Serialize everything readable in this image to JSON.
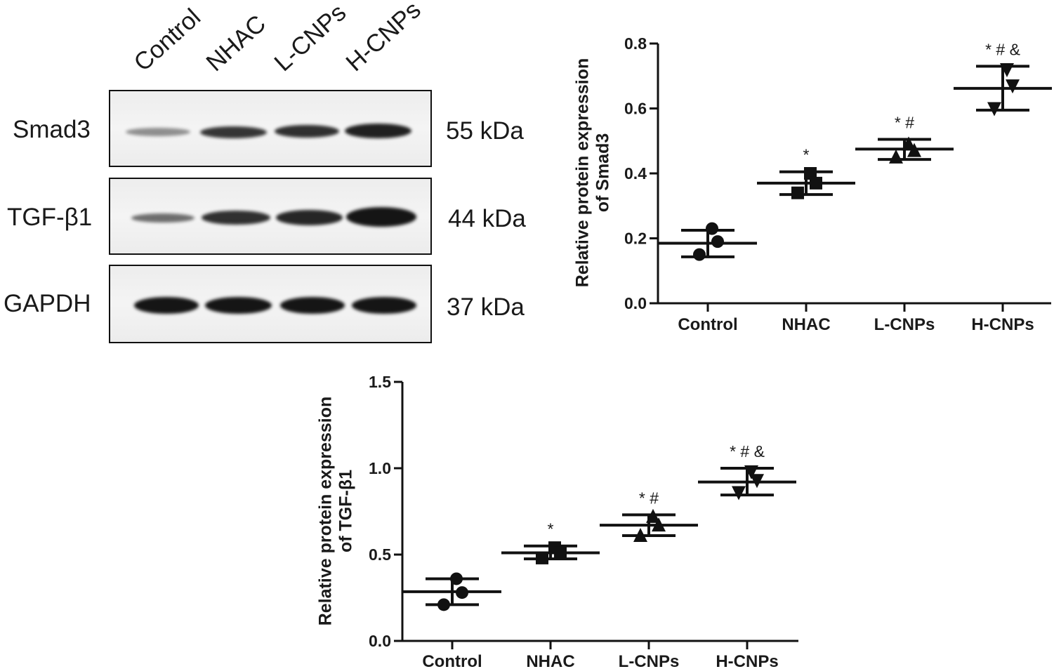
{
  "blot": {
    "lanes": [
      "Control",
      "NHAC",
      "L-CNPs",
      "H-CNPs"
    ],
    "rows": [
      {
        "protein": "Smad3",
        "kda": "55 kDa",
        "intensity": [
          0.35,
          0.8,
          0.85,
          0.95
        ]
      },
      {
        "protein": "TGF-β1",
        "kda": "44 kDa",
        "intensity": [
          0.5,
          0.85,
          0.9,
          1.0
        ]
      },
      {
        "protein": "GAPDH",
        "kda": "37 kDa",
        "intensity": [
          1.0,
          1.0,
          1.0,
          1.0
        ]
      }
    ]
  },
  "chart_data": [
    {
      "type": "scatter",
      "categories": [
        "Control",
        "NHAC",
        "L-CNPs",
        "H-CNPs"
      ],
      "ylabel": "Relative protein expression of Smad3",
      "ylim": [
        0,
        0.8
      ],
      "yticks": [
        "0.0",
        "0.2",
        "0.4",
        "0.6",
        "0.8"
      ],
      "ytick_values": [
        0,
        0.2,
        0.4,
        0.6,
        0.8
      ],
      "marker_shapes": [
        "circle",
        "square",
        "triangle-up",
        "triangle-down"
      ],
      "points": [
        [
          0.23,
          0.19,
          0.15
        ],
        [
          0.4,
          0.37,
          0.34
        ],
        [
          0.49,
          0.47,
          0.45
        ],
        [
          0.72,
          0.67,
          0.6
        ]
      ],
      "mean": [
        0.185,
        0.37,
        0.475,
        0.662
      ],
      "sd_upper": [
        0.225,
        0.405,
        0.505,
        0.73
      ],
      "sd_lower": [
        0.143,
        0.335,
        0.443,
        0.595
      ],
      "annotations": [
        "",
        "*",
        "* #",
        "* # &"
      ]
    },
    {
      "type": "scatter",
      "categories": [
        "Control",
        "NHAC",
        "L-CNPs",
        "H-CNPs"
      ],
      "ylabel": "Relative protein expression of TGF-β1",
      "ylim": [
        0,
        1.5
      ],
      "yticks": [
        "0.0",
        "0.5",
        "1.0",
        "1.5"
      ],
      "ytick_values": [
        0,
        0.5,
        1.0,
        1.5
      ],
      "marker_shapes": [
        "circle",
        "square",
        "triangle-up",
        "triangle-down"
      ],
      "points": [
        [
          0.36,
          0.28,
          0.21
        ],
        [
          0.54,
          0.51,
          0.48
        ],
        [
          0.72,
          0.67,
          0.61
        ],
        [
          0.98,
          0.93,
          0.86
        ]
      ],
      "mean": [
        0.285,
        0.51,
        0.67,
        0.92
      ],
      "sd_upper": [
        0.36,
        0.55,
        0.73,
        1.0
      ],
      "sd_lower": [
        0.21,
        0.475,
        0.61,
        0.845
      ],
      "annotations": [
        "",
        "*",
        "* #",
        "* # &"
      ]
    }
  ]
}
